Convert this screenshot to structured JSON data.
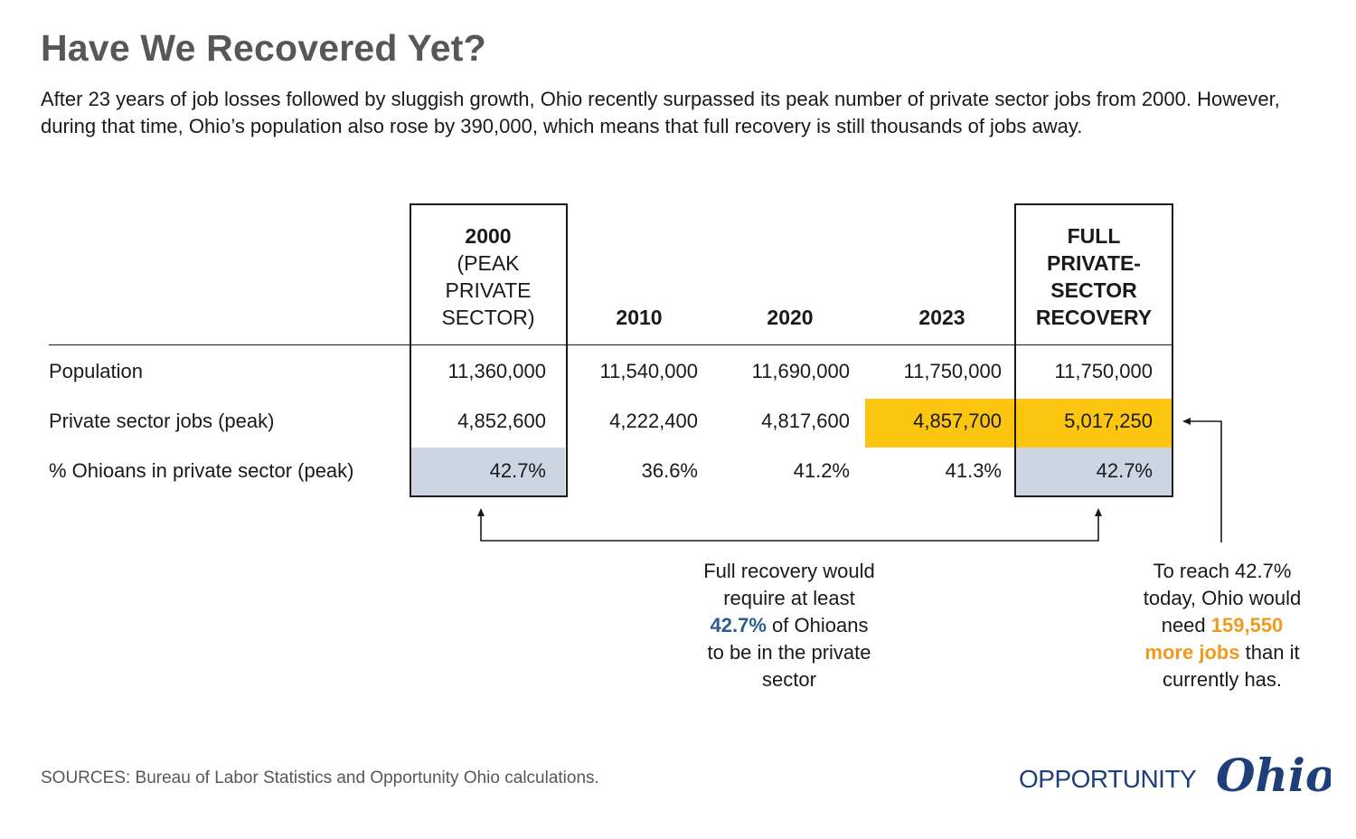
{
  "title": "Have We Recovered Yet?",
  "subtitle": "After 23 years of job losses followed by sluggish growth, Ohio recently surpassed its peak number of private sector jobs from 2000. However, during that time, Ohio’s population also rose by 390,000, which means that full recovery is still thousands of jobs away.",
  "chart_data": {
    "type": "table",
    "columns": [
      {
        "bold": "2000",
        "rest": [
          "(PEAK",
          "PRIVATE",
          "SECTOR)"
        ]
      },
      {
        "bold": "2010",
        "rest": []
      },
      {
        "bold": "2020",
        "rest": []
      },
      {
        "bold": "2023",
        "rest": []
      },
      {
        "bold": "FULL",
        "rest": [
          "PRIVATE-",
          "SECTOR",
          "RECOVERY"
        ],
        "all_bold": true
      }
    ],
    "rows": [
      {
        "label": "Population",
        "values": [
          "11,360,000",
          "11,540,000",
          "11,690,000",
          "11,750,000",
          "11,750,000"
        ]
      },
      {
        "label": "Private sector jobs (peak)",
        "values": [
          "4,852,600",
          "4,222,400",
          "4,817,600",
          "4,857,700",
          "5,017,250"
        ]
      },
      {
        "label": "% Ohioans in private sector (peak)",
        "values": [
          "42.7%",
          "36.6%",
          "41.2%",
          "41.3%",
          "42.7%"
        ]
      }
    ],
    "highlights": {
      "gold_color": "#fcc510",
      "blue_color": "#cdd5e3"
    }
  },
  "note_left": {
    "line1": "Full recovery would",
    "line2": "require at least",
    "line3_emph": "42.7%",
    "line3_rest": " of Ohioans",
    "line4": "to be in the private",
    "line5": "sector"
  },
  "note_right": {
    "line1": "To reach 42.7%",
    "line2": "today, Ohio would",
    "line3_pre": "need ",
    "line3_emph": "159,550",
    "line4_emph": "more jobs",
    "line4_rest": " than it",
    "line5": "currently has."
  },
  "sources": "SOURCES: Bureau of Labor Statistics and Opportunity Ohio calculations.",
  "logo": {
    "word1": "OPPORTUNITY",
    "word2": "Ohio",
    "color": "#1f3f7a"
  }
}
